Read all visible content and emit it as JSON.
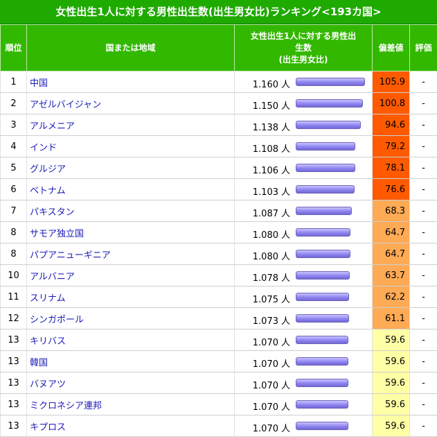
{
  "title": "女性出生1人に対する男性出生数(出生男女比)ランキング<193カ国>",
  "headers": {
    "rank": "順位",
    "country": "国または地域",
    "value_line1": "女性出生1人に対する男性出",
    "value_line2": "生数",
    "value_line3": "(出生男女比)",
    "deviation": "偏差値",
    "evaluation": "評価"
  },
  "unit": "人",
  "bar_max_value": 1.16,
  "colors": {
    "title_bg": "#1faa00",
    "header_bg": "#33b800",
    "dev_red": "#ff5a00",
    "dev_orange": "#ffaa55",
    "dev_yellow": "#ffffa6"
  },
  "rows": [
    {
      "rank": "1",
      "name": "中国",
      "value": "1.160",
      "num": 1.16,
      "dev": "105.9",
      "tier": "red",
      "eval": "-"
    },
    {
      "rank": "2",
      "name": "アゼルバイジャン",
      "value": "1.150",
      "num": 1.15,
      "dev": "100.8",
      "tier": "red",
      "eval": "-"
    },
    {
      "rank": "3",
      "name": "アルメニア",
      "value": "1.138",
      "num": 1.138,
      "dev": "94.6",
      "tier": "red",
      "eval": "-"
    },
    {
      "rank": "4",
      "name": "インド",
      "value": "1.108",
      "num": 1.108,
      "dev": "79.2",
      "tier": "red",
      "eval": "-"
    },
    {
      "rank": "5",
      "name": "グルジア",
      "value": "1.106",
      "num": 1.106,
      "dev": "78.1",
      "tier": "red",
      "eval": "-"
    },
    {
      "rank": "6",
      "name": "ベトナム",
      "value": "1.103",
      "num": 1.103,
      "dev": "76.6",
      "tier": "red",
      "eval": "-"
    },
    {
      "rank": "7",
      "name": "パキスタン",
      "value": "1.087",
      "num": 1.087,
      "dev": "68.3",
      "tier": "orange",
      "eval": "-"
    },
    {
      "rank": "8",
      "name": "サモア独立国",
      "value": "1.080",
      "num": 1.08,
      "dev": "64.7",
      "tier": "orange",
      "eval": "-"
    },
    {
      "rank": "8",
      "name": "パプアニューギニア",
      "value": "1.080",
      "num": 1.08,
      "dev": "64.7",
      "tier": "orange",
      "eval": "-"
    },
    {
      "rank": "10",
      "name": "アルバニア",
      "value": "1.078",
      "num": 1.078,
      "dev": "63.7",
      "tier": "orange",
      "eval": "-"
    },
    {
      "rank": "11",
      "name": "スリナム",
      "value": "1.075",
      "num": 1.075,
      "dev": "62.2",
      "tier": "orange",
      "eval": "-"
    },
    {
      "rank": "12",
      "name": "シンガポール",
      "value": "1.073",
      "num": 1.073,
      "dev": "61.1",
      "tier": "orange",
      "eval": "-"
    },
    {
      "rank": "13",
      "name": "キリバス",
      "value": "1.070",
      "num": 1.07,
      "dev": "59.6",
      "tier": "yellow",
      "eval": "-"
    },
    {
      "rank": "13",
      "name": "韓国",
      "value": "1.070",
      "num": 1.07,
      "dev": "59.6",
      "tier": "yellow",
      "eval": "-"
    },
    {
      "rank": "13",
      "name": "バヌアツ",
      "value": "1.070",
      "num": 1.07,
      "dev": "59.6",
      "tier": "yellow",
      "eval": "-"
    },
    {
      "rank": "13",
      "name": "ミクロネシア連邦",
      "value": "1.070",
      "num": 1.07,
      "dev": "59.6",
      "tier": "yellow",
      "eval": "-"
    },
    {
      "rank": "13",
      "name": "キプロス",
      "value": "1.070",
      "num": 1.07,
      "dev": "59.6",
      "tier": "yellow",
      "eval": "-"
    }
  ]
}
